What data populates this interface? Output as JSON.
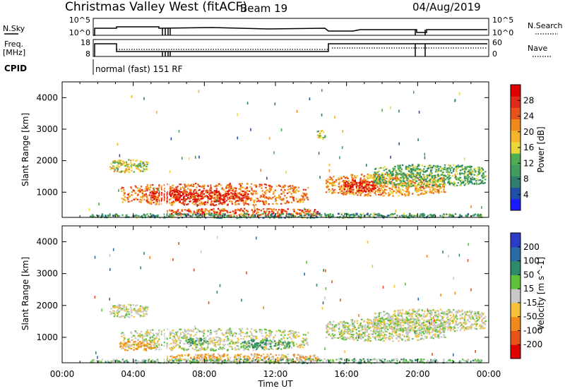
{
  "header": {
    "station": "Christmas Valley West (fitACF)",
    "beam": "Beam 19",
    "date": "04/Aug/2019"
  },
  "top_panels": {
    "nsky_label": "N.Sky",
    "nsky_ticks": [
      "10^5",
      "10^0"
    ],
    "nsearch_label": "N.Search",
    "nsearch_ticks": [
      "10^5",
      "10^0"
    ],
    "freq_label": "Freq.",
    "freq_unit": "[MHz]",
    "freq_ticks": [
      "18",
      "8"
    ],
    "nave_label": "Nave",
    "nave_ticks": [
      "60",
      "0"
    ],
    "cpid_label": "CPID",
    "cpid_text": "normal (fast) 151 RF"
  },
  "chart_data": [
    {
      "type": "heatmap",
      "name": "power",
      "ylabel": "Slant Range [km]",
      "ylim": [
        200,
        4500
      ],
      "yticks": [
        1000,
        2000,
        3000,
        4000
      ],
      "xlim": [
        0,
        24
      ],
      "colorbar": {
        "label": "Power [dB]",
        "ticks": [
          "4",
          "8",
          "12",
          "16",
          "20",
          "24",
          "28"
        ],
        "colors": [
          "#1a1aff",
          "#1f4fa8",
          "#2e7d6d",
          "#3f9e5f",
          "#4fae54",
          "#e9d83a",
          "#f5b42a",
          "#f08a1c",
          "#e8531b",
          "#e12a1a",
          "#e00000"
        ]
      },
      "regions": [
        {
          "t0": 2.6,
          "t1": 4.8,
          "r0": 1650,
          "r1": 2050,
          "value": 16
        },
        {
          "t0": 3.2,
          "t1": 13.8,
          "r0": 600,
          "r1": 1300,
          "value": 22
        },
        {
          "t0": 5.0,
          "t1": 10.5,
          "r0": 700,
          "r1": 1100,
          "value": 27
        },
        {
          "t0": 5.8,
          "t1": 14.5,
          "r0": 250,
          "r1": 500,
          "value": 24
        },
        {
          "t0": 14.8,
          "t1": 21.5,
          "r0": 900,
          "r1": 1600,
          "value": 20
        },
        {
          "t0": 15.8,
          "t1": 17.6,
          "r0": 1000,
          "r1": 1400,
          "value": 27
        },
        {
          "t0": 17.5,
          "t1": 23.8,
          "r0": 1200,
          "r1": 1900,
          "value": 12
        },
        {
          "t0": 14.3,
          "t1": 14.8,
          "r0": 2700,
          "r1": 3000,
          "value": 14
        },
        {
          "t0": 1.5,
          "t1": 23.8,
          "r0": 200,
          "r1": 350,
          "value": 10
        }
      ]
    },
    {
      "type": "heatmap",
      "name": "velocity",
      "ylabel": "Slant Range [km]",
      "ylim": [
        200,
        4500
      ],
      "yticks": [
        1000,
        2000,
        3000,
        4000
      ],
      "xlim": [
        0,
        24
      ],
      "xticks": [
        "00:00",
        "04:00",
        "08:00",
        "12:00",
        "16:00",
        "20:00",
        "00:00"
      ],
      "xlabel": "Time UT",
      "colorbar": {
        "label": "Velocity [m s^-1]",
        "ticks": [
          "200",
          "100",
          "50",
          "15",
          "-15",
          "-50",
          "-100",
          "-200"
        ],
        "colors": [
          "#2a3cc8",
          "#2a6aa8",
          "#2e8a6a",
          "#5ec23a",
          "#c8c8c8",
          "#f5c23a",
          "#f08a1c",
          "#e8531b",
          "#e00000"
        ]
      },
      "regions": [
        {
          "t0": 2.6,
          "t1": 4.8,
          "r0": 1650,
          "r1": 2050,
          "value": 0
        },
        {
          "t0": 3.2,
          "t1": 13.8,
          "r0": 600,
          "r1": 1300,
          "value": 0
        },
        {
          "t0": 3.2,
          "t1": 5.2,
          "r0": 600,
          "r1": 900,
          "value": -40
        },
        {
          "t0": 7.0,
          "t1": 8.2,
          "r0": 750,
          "r1": 1000,
          "value": 30
        },
        {
          "t0": 10.0,
          "t1": 12.8,
          "r0": 650,
          "r1": 950,
          "value": 40
        },
        {
          "t0": 5.8,
          "t1": 14.5,
          "r0": 250,
          "r1": 500,
          "value": -30
        },
        {
          "t0": 14.8,
          "t1": 21.5,
          "r0": 900,
          "r1": 1600,
          "value": 0
        },
        {
          "t0": 17.5,
          "t1": 23.8,
          "r0": 1200,
          "r1": 1900,
          "value": 0
        },
        {
          "t0": 1.5,
          "t1": 23.8,
          "r0": 200,
          "r1": 350,
          "value": 20
        }
      ]
    }
  ]
}
